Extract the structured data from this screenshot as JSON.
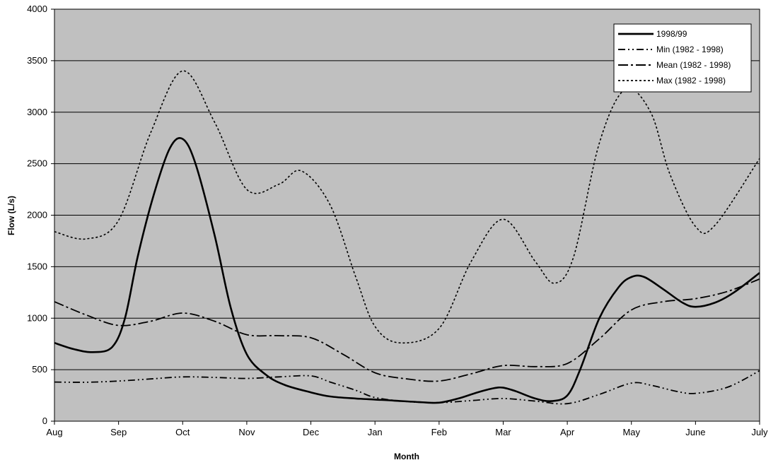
{
  "chart_data": {
    "type": "line",
    "title": "",
    "xlabel": "Month",
    "ylabel": "Flow (L/s)",
    "categories": [
      "Aug",
      "Sep",
      "Oct",
      "Nov",
      "Dec",
      "Jan",
      "Feb",
      "Mar",
      "Apr",
      "May",
      "June",
      "July"
    ],
    "ylim": [
      0,
      4000
    ],
    "yticks": [
      "0",
      "500",
      "1000",
      "1500",
      "2000",
      "2500",
      "3000",
      "3500",
      "4000"
    ],
    "grid": true,
    "legend_position": "top-right",
    "colors": {
      "plot_background": "#c0c0c0",
      "line": "#000000"
    },
    "series": [
      {
        "name": "1998/99",
        "style": "solid",
        "points": [
          [
            0,
            760
          ],
          [
            0.3,
            700
          ],
          [
            0.6,
            670
          ],
          [
            0.9,
            720
          ],
          [
            1.1,
            1000
          ],
          [
            1.3,
            1600
          ],
          [
            1.55,
            2200
          ],
          [
            1.8,
            2650
          ],
          [
            2.0,
            2740
          ],
          [
            2.2,
            2500
          ],
          [
            2.5,
            1800
          ],
          [
            2.75,
            1100
          ],
          [
            3.0,
            650
          ],
          [
            3.3,
            450
          ],
          [
            3.6,
            350
          ],
          [
            4.0,
            280
          ],
          [
            4.3,
            240
          ],
          [
            4.7,
            220
          ],
          [
            5.0,
            210
          ],
          [
            5.3,
            200
          ],
          [
            5.7,
            185
          ],
          [
            6.0,
            180
          ],
          [
            6.3,
            220
          ],
          [
            6.6,
            280
          ],
          [
            6.85,
            320
          ],
          [
            7.0,
            325
          ],
          [
            7.2,
            290
          ],
          [
            7.5,
            220
          ],
          [
            7.75,
            195
          ],
          [
            8.0,
            250
          ],
          [
            8.2,
            500
          ],
          [
            8.5,
            1000
          ],
          [
            8.8,
            1300
          ],
          [
            9.0,
            1400
          ],
          [
            9.2,
            1400
          ],
          [
            9.5,
            1280
          ],
          [
            9.8,
            1150
          ],
          [
            10.0,
            1110
          ],
          [
            10.3,
            1150
          ],
          [
            10.6,
            1250
          ],
          [
            11.0,
            1440
          ]
        ]
      },
      {
        "name": "Min (1982 - 1998)",
        "style": "dash-dot-dot",
        "points": [
          [
            0,
            380
          ],
          [
            0.5,
            378
          ],
          [
            1.0,
            390
          ],
          [
            1.5,
            410
          ],
          [
            2.0,
            430
          ],
          [
            2.5,
            425
          ],
          [
            3.0,
            415
          ],
          [
            3.5,
            430
          ],
          [
            4.0,
            440
          ],
          [
            4.3,
            380
          ],
          [
            4.7,
            300
          ],
          [
            5.0,
            230
          ],
          [
            5.5,
            190
          ],
          [
            6.0,
            180
          ],
          [
            6.5,
            200
          ],
          [
            7.0,
            220
          ],
          [
            7.5,
            195
          ],
          [
            8.0,
            170
          ],
          [
            8.5,
            260
          ],
          [
            9.0,
            370
          ],
          [
            9.3,
            350
          ],
          [
            9.7,
            290
          ],
          [
            10.0,
            270
          ],
          [
            10.5,
            330
          ],
          [
            11.0,
            490
          ]
        ]
      },
      {
        "name": "Mean (1982 - 1998)",
        "style": "dash-dot",
        "points": [
          [
            0,
            1160
          ],
          [
            0.5,
            1030
          ],
          [
            1.0,
            930
          ],
          [
            1.5,
            970
          ],
          [
            2.0,
            1050
          ],
          [
            2.5,
            970
          ],
          [
            3.0,
            840
          ],
          [
            3.5,
            830
          ],
          [
            4.0,
            810
          ],
          [
            4.5,
            650
          ],
          [
            5.0,
            470
          ],
          [
            5.5,
            410
          ],
          [
            6.0,
            390
          ],
          [
            6.5,
            460
          ],
          [
            7.0,
            540
          ],
          [
            7.5,
            530
          ],
          [
            8.0,
            560
          ],
          [
            8.5,
            800
          ],
          [
            9.0,
            1080
          ],
          [
            9.5,
            1160
          ],
          [
            10.0,
            1190
          ],
          [
            10.5,
            1260
          ],
          [
            11.0,
            1380
          ]
        ]
      },
      {
        "name": "Max (1982 - 1998)",
        "style": "dotted",
        "points": [
          [
            0,
            1840
          ],
          [
            0.5,
            1770
          ],
          [
            1.0,
            1950
          ],
          [
            1.5,
            2800
          ],
          [
            2.0,
            3400
          ],
          [
            2.5,
            2900
          ],
          [
            3.0,
            2250
          ],
          [
            3.5,
            2300
          ],
          [
            3.85,
            2430
          ],
          [
            4.3,
            2100
          ],
          [
            4.7,
            1400
          ],
          [
            5.0,
            920
          ],
          [
            5.4,
            760
          ],
          [
            6.0,
            900
          ],
          [
            6.5,
            1550
          ],
          [
            7.0,
            1960
          ],
          [
            7.5,
            1550
          ],
          [
            7.8,
            1340
          ],
          [
            8.1,
            1600
          ],
          [
            8.5,
            2700
          ],
          [
            8.9,
            3220
          ],
          [
            9.3,
            3000
          ],
          [
            9.6,
            2400
          ],
          [
            10.0,
            1890
          ],
          [
            10.3,
            1900
          ],
          [
            11.0,
            2550
          ]
        ]
      }
    ]
  }
}
